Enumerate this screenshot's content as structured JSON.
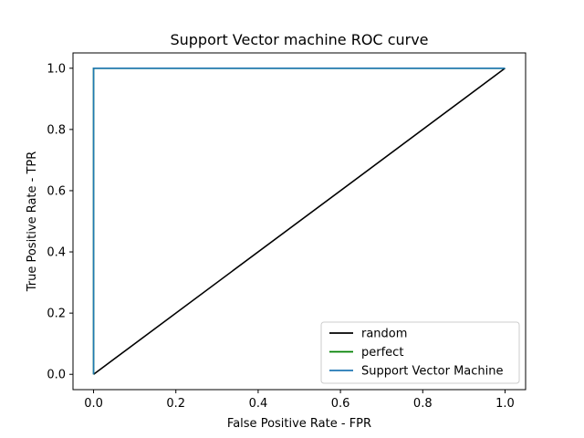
{
  "chart_data": {
    "type": "line",
    "title": "Support Vector machine ROC curve",
    "xlabel": "False Positive Rate - FPR",
    "ylabel": "True Positive Rate - TPR",
    "xlim": [
      -0.05,
      1.05
    ],
    "ylim": [
      -0.05,
      1.05
    ],
    "xticks": [
      0.0,
      0.2,
      0.4,
      0.6,
      0.8,
      1.0
    ],
    "xtick_labels": [
      "0.0",
      "0.2",
      "0.4",
      "0.6",
      "0.8",
      "1.0"
    ],
    "yticks": [
      0.0,
      0.2,
      0.4,
      0.6,
      0.8,
      1.0
    ],
    "ytick_labels": [
      "0.0",
      "0.2",
      "0.4",
      "0.6",
      "0.8",
      "1.0"
    ],
    "grid": false,
    "legend_position": "lower-right",
    "series": [
      {
        "name": "random",
        "color": "#000000",
        "x": [
          0.0,
          1.0
        ],
        "y": [
          0.0,
          1.0
        ]
      },
      {
        "name": "perfect",
        "color": "#008000",
        "x": [
          0.0,
          0.0,
          1.0
        ],
        "y": [
          0.0,
          1.0,
          1.0
        ]
      },
      {
        "name": "Support Vector Machine",
        "color": "#1f77b4",
        "x": [
          0.0,
          0.0,
          1.0
        ],
        "y": [
          0.0,
          1.0,
          1.0
        ]
      }
    ]
  }
}
